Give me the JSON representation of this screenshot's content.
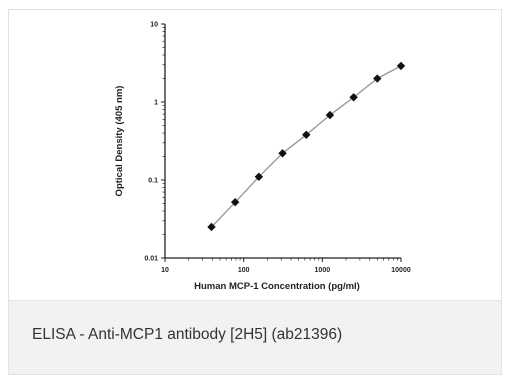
{
  "caption": "ELISA - Anti-MCP1 antibody [2H5] (ab21396)",
  "chart_data": {
    "type": "scatter",
    "title": "",
    "xlabel": "Human MCP-1 Concentration (pg/ml)",
    "ylabel": "Optical Density (405 nm)",
    "x_scale": "log",
    "y_scale": "log",
    "xlim": [
      10,
      10000
    ],
    "ylim": [
      0.01,
      10
    ],
    "x_ticks": [
      10,
      100,
      1000,
      10000
    ],
    "x_tick_labels": [
      "10",
      "100",
      "1000",
      "10000"
    ],
    "y_ticks": [
      0.01,
      0.1,
      1,
      10
    ],
    "y_tick_labels": [
      "0.01",
      "0.1",
      "1",
      "10"
    ],
    "grid": false,
    "marker": "diamond",
    "line": "connected",
    "colors": {
      "marker": "#111111",
      "line": "#9a9a9a",
      "axis": "#222222"
    },
    "series": [
      {
        "x": [
          39,
          78,
          156,
          312,
          625,
          1250,
          2500,
          5000,
          10000
        ],
        "values": [
          0.025,
          0.052,
          0.11,
          0.22,
          0.38,
          0.68,
          1.15,
          2.0,
          2.9
        ]
      }
    ]
  }
}
